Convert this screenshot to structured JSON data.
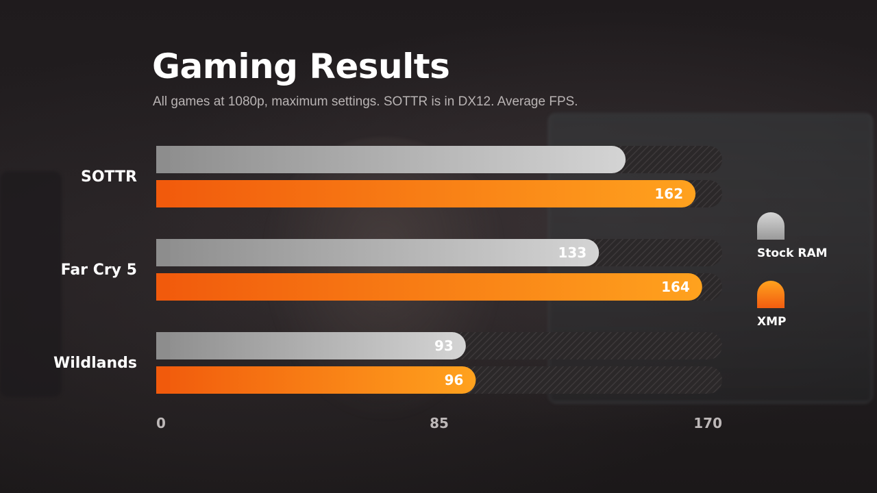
{
  "chart_data": {
    "type": "bar",
    "orientation": "horizontal",
    "title": "Gaming Results",
    "subtitle": "All games at 1080p, maximum settings. SOTTR is in DX12. Average FPS.",
    "categories": [
      "SOTTR",
      "Far Cry 5",
      "Wildlands"
    ],
    "series": [
      {
        "name": "Stock RAM",
        "color": "#c8c8c8",
        "values": [
          141,
          133,
          93
        ],
        "value_labels": [
          "",
          "133",
          "93"
        ]
      },
      {
        "name": "XMP",
        "color": "#ff7f1a",
        "values": [
          162,
          164,
          96
        ],
        "value_labels": [
          "162",
          "164",
          "96"
        ]
      }
    ],
    "xlim": [
      0,
      170
    ],
    "x_ticks": [
      "0",
      "85",
      "170"
    ],
    "legend_position": "right",
    "grid": false
  }
}
